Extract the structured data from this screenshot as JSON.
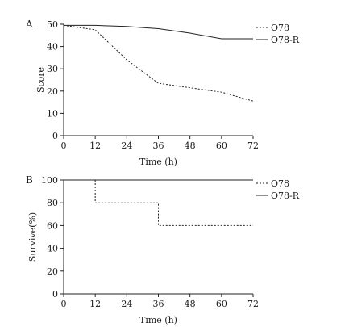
{
  "chart_data": [
    {
      "panel_label": "A",
      "type": "line",
      "xlabel": "Time (h)",
      "ylabel": "Score",
      "xlim": [
        0,
        72
      ],
      "ylim": [
        0,
        50
      ],
      "xticks": [
        0,
        12,
        24,
        36,
        48,
        60,
        72
      ],
      "yticks": [
        0,
        10,
        20,
        30,
        40,
        50
      ],
      "grid": false,
      "legend_position": "top-right",
      "step": false,
      "series": [
        {
          "name": "O78",
          "style": "dotted",
          "x": [
            0,
            12,
            24,
            36,
            48,
            60,
            72
          ],
          "y": [
            49.5,
            47.5,
            34,
            23.5,
            21.5,
            19.5,
            15.5
          ]
        },
        {
          "name": "O78-R",
          "style": "solid",
          "x": [
            0,
            12,
            24,
            36,
            48,
            60,
            72
          ],
          "y": [
            49.5,
            49.5,
            49,
            48,
            46,
            43.5,
            43.5
          ]
        }
      ]
    },
    {
      "panel_label": "B",
      "type": "line",
      "xlabel": "Time (h)",
      "ylabel": "Survive(%)",
      "xlim": [
        0,
        72
      ],
      "ylim": [
        0,
        100
      ],
      "xticks": [
        0,
        12,
        24,
        36,
        48,
        60,
        72
      ],
      "yticks": [
        0,
        20,
        40,
        60,
        80,
        100
      ],
      "grid": false,
      "legend_position": "top-right",
      "step": true,
      "series": [
        {
          "name": "O78",
          "style": "dotted",
          "x": [
            12,
            36,
            72
          ],
          "y": [
            80,
            60,
            60
          ],
          "start": [
            12,
            100
          ]
        },
        {
          "name": "O78-R",
          "style": "solid",
          "x": [
            0,
            72
          ],
          "y": [
            100,
            100
          ],
          "start": null
        }
      ]
    }
  ]
}
